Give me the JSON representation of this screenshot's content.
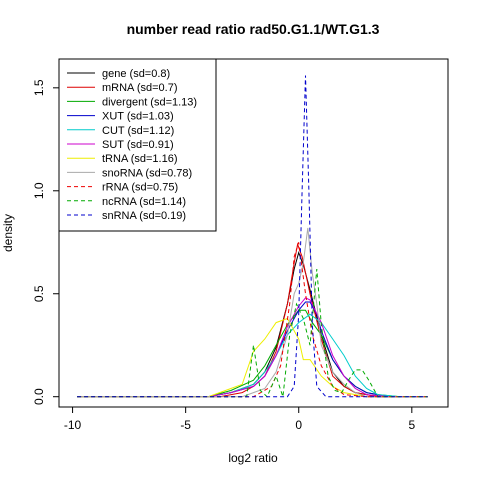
{
  "chart_data": {
    "type": "line",
    "title": "number read ratio rad50.G1.1/WT.G1.3",
    "xlabel": "log2 ratio",
    "ylabel": "density",
    "xlim": [
      -10.6,
      6.6
    ],
    "ylim": [
      -0.05,
      1.64
    ],
    "x_ticks": [
      -10,
      -5,
      0,
      5
    ],
    "y_ticks": [
      0.0,
      0.5,
      1.0,
      1.5
    ],
    "x_tick_labels": [
      "-10",
      "-5",
      "0",
      "5"
    ],
    "y_tick_labels": [
      "0.0",
      "0.5",
      "1.0",
      "1.5"
    ],
    "legend_position": "top-left",
    "grid": false,
    "series": [
      {
        "name": "gene (sd=0.8)",
        "color": "#000000",
        "dash": "solid",
        "x": [
          -9.8,
          -4.0,
          -3.0,
          -2.0,
          -1.5,
          -1.0,
          -0.5,
          -0.2,
          0.0,
          0.2,
          0.5,
          1.0,
          1.5,
          2.0,
          2.5,
          3.0,
          3.5,
          4.5,
          5.7
        ],
        "y": [
          0,
          0,
          0.02,
          0.06,
          0.12,
          0.24,
          0.45,
          0.62,
          0.7,
          0.64,
          0.52,
          0.3,
          0.12,
          0.05,
          0.02,
          0.01,
          0,
          0,
          0
        ]
      },
      {
        "name": "mRNA (sd=0.7)",
        "color": "#dd0000",
        "dash": "solid",
        "x": [
          -9.8,
          -3.5,
          -2.5,
          -2.0,
          -1.5,
          -1.0,
          -0.5,
          -0.2,
          -0.05,
          0.15,
          0.5,
          1.0,
          1.5,
          2.0,
          2.5,
          3.0,
          3.5,
          4.5,
          5.7
        ],
        "y": [
          0,
          0,
          0.02,
          0.05,
          0.1,
          0.22,
          0.45,
          0.65,
          0.74,
          0.68,
          0.5,
          0.28,
          0.1,
          0.05,
          0.02,
          0.01,
          0,
          0,
          0
        ]
      },
      {
        "name": "divergent (sd=1.13)",
        "color": "#00aa00",
        "dash": "solid",
        "x": [
          -9.8,
          -4.0,
          -3.0,
          -2.0,
          -1.5,
          -1.0,
          -0.5,
          0.0,
          0.3,
          0.6,
          1.0,
          1.5,
          2.0,
          2.5,
          3.0,
          3.5,
          4.5,
          5.7
        ],
        "y": [
          0,
          0,
          0.03,
          0.08,
          0.15,
          0.25,
          0.35,
          0.42,
          0.42,
          0.36,
          0.3,
          0.18,
          0.1,
          0.05,
          0.02,
          0.01,
          0,
          0
        ]
      },
      {
        "name": "XUT (sd=1.03)",
        "color": "#0000cc",
        "dash": "solid",
        "x": [
          -9.8,
          -4.0,
          -3.0,
          -2.0,
          -1.5,
          -1.0,
          -0.5,
          0.0,
          0.3,
          0.5,
          0.8,
          1.0,
          1.5,
          2.0,
          2.5,
          3.0,
          4.0,
          5.7
        ],
        "y": [
          0,
          0,
          0.02,
          0.05,
          0.1,
          0.2,
          0.32,
          0.42,
          0.46,
          0.46,
          0.4,
          0.32,
          0.18,
          0.1,
          0.05,
          0.02,
          0,
          0
        ]
      },
      {
        "name": "CUT (sd=1.12)",
        "color": "#00cccc",
        "dash": "solid",
        "x": [
          -9.8,
          -4.0,
          -3.0,
          -2.0,
          -1.5,
          -1.0,
          -0.5,
          0.0,
          0.5,
          1.0,
          1.5,
          2.0,
          2.5,
          3.0,
          3.5,
          4.5,
          5.7
        ],
        "y": [
          0,
          0,
          0.02,
          0.06,
          0.12,
          0.2,
          0.3,
          0.36,
          0.4,
          0.36,
          0.28,
          0.2,
          0.1,
          0.04,
          0.01,
          0,
          0
        ]
      },
      {
        "name": "SUT (sd=0.91)",
        "color": "#cc00cc",
        "dash": "solid",
        "x": [
          -9.8,
          -4.0,
          -3.0,
          -2.0,
          -1.5,
          -1.0,
          -0.5,
          0.0,
          0.3,
          0.5,
          1.0,
          1.5,
          2.0,
          2.5,
          3.0,
          4.0,
          5.7
        ],
        "y": [
          0,
          0,
          0.02,
          0.05,
          0.1,
          0.2,
          0.34,
          0.44,
          0.48,
          0.47,
          0.36,
          0.2,
          0.1,
          0.04,
          0.01,
          0,
          0
        ]
      },
      {
        "name": "tRNA (sd=1.16)",
        "color": "#eeee00",
        "dash": "solid",
        "x": [
          -9.8,
          -4.0,
          -3.5,
          -3.0,
          -2.5,
          -2.0,
          -1.5,
          -1.0,
          -0.5,
          0.0,
          0.2,
          0.5,
          1.0,
          1.5,
          2.0,
          2.5,
          3.0,
          4.0,
          5.7
        ],
        "y": [
          0,
          0,
          0.02,
          0.04,
          0.06,
          0.22,
          0.28,
          0.36,
          0.38,
          0.28,
          0.18,
          0.18,
          0.1,
          0.05,
          0.02,
          0.01,
          0,
          0,
          0
        ]
      },
      {
        "name": "snoRNA (sd=0.78)",
        "color": "#aaaaaa",
        "dash": "solid",
        "x": [
          -9.8,
          -2.5,
          -1.5,
          -1.0,
          -0.5,
          -0.2,
          0.0,
          0.2,
          0.4,
          0.6,
          0.8,
          1.0,
          1.5,
          2.0,
          2.5,
          3.0,
          5.7
        ],
        "y": [
          0,
          0,
          0.04,
          0.12,
          0.3,
          0.5,
          0.55,
          0.65,
          0.82,
          0.6,
          0.45,
          0.25,
          0.12,
          0.06,
          0.02,
          0,
          0
        ]
      },
      {
        "name": "rRNA (sd=0.75)",
        "color": "#ee0000",
        "dash": "dashed",
        "x": [
          -9.8,
          -2.0,
          -1.2,
          -0.8,
          -0.4,
          -0.2,
          0.0,
          0.3,
          0.6,
          1.0,
          1.5,
          2.0,
          3.0,
          5.7
        ],
        "y": [
          0,
          0,
          0.05,
          0.15,
          0.45,
          0.68,
          0.75,
          0.5,
          0.3,
          0.15,
          0.05,
          0.01,
          0,
          0
        ]
      },
      {
        "name": "ncRNA (sd=1.14)",
        "color": "#00aa00",
        "dash": "dashed",
        "x": [
          -9.8,
          -3.0,
          -2.3,
          -2.0,
          -1.7,
          -1.4,
          -1.0,
          -0.7,
          -0.4,
          -0.1,
          0.2,
          0.5,
          0.8,
          1.0,
          1.3,
          1.6,
          1.9,
          2.2,
          2.5,
          2.8,
          3.1,
          3.5,
          5.7
        ],
        "y": [
          0,
          0,
          0.0,
          0.25,
          0.03,
          0.0,
          0.1,
          0.0,
          0.3,
          0.45,
          0.38,
          0.25,
          0.62,
          0.35,
          0.1,
          0.03,
          0.02,
          0.08,
          0.13,
          0.13,
          0.08,
          0,
          0
        ]
      },
      {
        "name": "snRNA (sd=0.19)",
        "color": "#0000cc",
        "dash": "dashed",
        "x": [
          -9.8,
          -1.0,
          -0.5,
          -0.2,
          0.0,
          0.15,
          0.3,
          0.45,
          0.6,
          0.8,
          1.2,
          5.7
        ],
        "y": [
          0,
          0,
          0.0,
          0.05,
          0.4,
          1.0,
          1.56,
          1.0,
          0.35,
          0.05,
          0,
          0
        ]
      }
    ]
  }
}
